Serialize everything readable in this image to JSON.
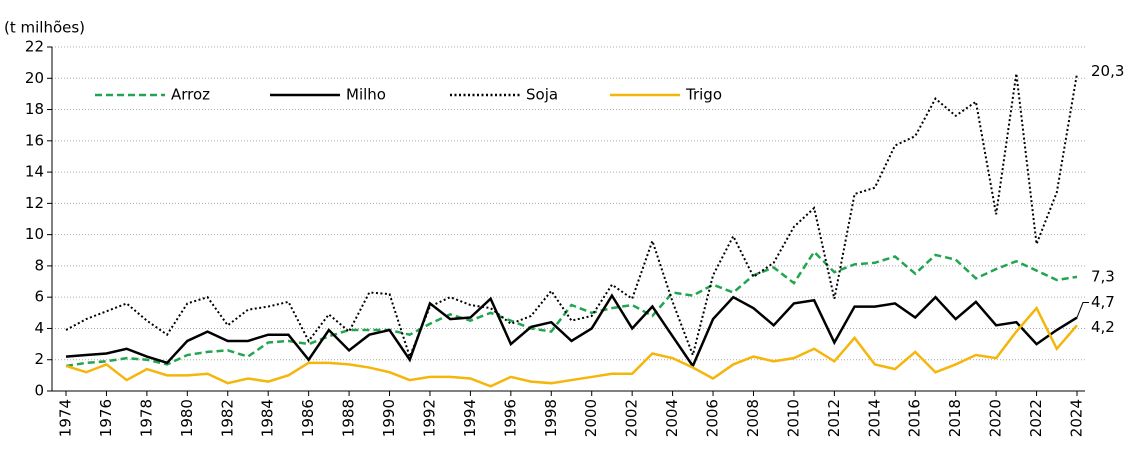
{
  "chart_data": {
    "type": "line",
    "y_label": "(t milhões)",
    "x": [
      1974,
      1975,
      1976,
      1977,
      1978,
      1979,
      1980,
      1981,
      1982,
      1983,
      1984,
      1985,
      1986,
      1987,
      1988,
      1989,
      1990,
      1991,
      1992,
      1993,
      1994,
      1995,
      1996,
      1997,
      1998,
      1999,
      2000,
      2001,
      2002,
      2003,
      2004,
      2005,
      2006,
      2007,
      2008,
      2009,
      2010,
      2011,
      2012,
      2013,
      2014,
      2015,
      2016,
      2017,
      2018,
      2019,
      2020,
      2021,
      2022,
      2023,
      2024
    ],
    "xlim": [
      1974,
      2024
    ],
    "xticks": [
      1974,
      1976,
      1978,
      1980,
      1982,
      1984,
      1986,
      1988,
      1990,
      1992,
      1994,
      1996,
      1998,
      2000,
      2002,
      2004,
      2006,
      2008,
      2010,
      2012,
      2014,
      2016,
      2018,
      2020,
      2022,
      2024
    ],
    "ylim": [
      0,
      22
    ],
    "yticks": [
      0,
      2,
      4,
      6,
      8,
      10,
      12,
      14,
      16,
      18,
      20,
      22
    ],
    "grid": true,
    "legend": "top-left",
    "series": [
      {
        "name": "Arroz",
        "color": "#22a550",
        "dash": "dashed",
        "values": [
          1.6,
          1.8,
          1.9,
          2.1,
          2.0,
          1.7,
          2.3,
          2.5,
          2.6,
          2.2,
          3.1,
          3.2,
          3.0,
          3.5,
          3.9,
          3.9,
          3.9,
          3.6,
          4.3,
          4.9,
          4.5,
          5.0,
          4.5,
          4.0,
          3.8,
          5.5,
          5.0,
          5.3,
          5.5,
          4.8,
          6.3,
          6.1,
          6.8,
          6.3,
          7.4,
          7.9,
          6.9,
          8.9,
          7.6,
          8.1,
          8.2,
          8.6,
          7.5,
          8.7,
          8.4,
          7.2,
          7.8,
          8.3,
          7.7,
          7.1,
          7.3
        ],
        "value_labels": [
          null,
          null,
          null,
          null,
          null,
          null,
          null,
          null,
          null,
          null,
          null,
          null,
          null,
          null,
          null,
          null,
          null,
          null,
          null,
          null,
          null,
          null,
          null,
          null,
          null,
          null,
          null,
          null,
          null,
          null,
          null,
          null,
          null,
          null,
          null,
          null,
          null,
          null,
          null,
          null,
          null,
          null,
          null,
          null,
          null,
          null,
          null,
          null,
          null,
          null,
          "7,3"
        ]
      },
      {
        "name": "Milho",
        "color": "#000000",
        "dash": "solid",
        "values": [
          2.2,
          2.3,
          2.4,
          2.7,
          2.2,
          1.8,
          3.2,
          3.8,
          3.2,
          3.2,
          3.6,
          3.6,
          2.0,
          3.9,
          2.6,
          3.6,
          3.9,
          2.0,
          5.6,
          4.6,
          4.7,
          5.9,
          3.0,
          4.1,
          4.4,
          3.2,
          4.0,
          6.1,
          4.0,
          5.4,
          3.5,
          1.6,
          4.6,
          6.0,
          5.3,
          4.2,
          5.6,
          5.8,
          3.1,
          5.4,
          5.4,
          5.6,
          4.7,
          6.0,
          4.6,
          5.7,
          4.2,
          4.4,
          3.0,
          3.9,
          4.7
        ],
        "value_labels": [
          null,
          null,
          null,
          null,
          null,
          null,
          null,
          null,
          null,
          null,
          null,
          null,
          null,
          null,
          null,
          null,
          null,
          null,
          null,
          null,
          null,
          null,
          null,
          null,
          null,
          null,
          null,
          null,
          null,
          null,
          null,
          null,
          null,
          null,
          null,
          null,
          null,
          null,
          null,
          null,
          null,
          null,
          null,
          null,
          null,
          null,
          null,
          null,
          null,
          null,
          "4,7"
        ]
      },
      {
        "name": "Soja",
        "color": "#000000",
        "dash": "dotted",
        "values": [
          3.9,
          4.6,
          5.1,
          5.6,
          4.5,
          3.6,
          5.6,
          6.0,
          4.2,
          5.2,
          5.4,
          5.7,
          3.2,
          4.9,
          3.8,
          6.3,
          6.2,
          2.2,
          5.4,
          6.0,
          5.5,
          5.3,
          4.3,
          4.8,
          6.4,
          4.5,
          4.8,
          6.8,
          5.9,
          9.6,
          5.7,
          2.3,
          7.4,
          9.9,
          7.3,
          8.2,
          10.5,
          11.7,
          5.9,
          12.6,
          13.0,
          15.7,
          16.3,
          18.7,
          17.6,
          18.5,
          11.3,
          20.3,
          9.4,
          12.7,
          20.3
        ],
        "value_labels": [
          null,
          null,
          null,
          null,
          null,
          null,
          null,
          null,
          null,
          null,
          null,
          null,
          null,
          null,
          null,
          null,
          null,
          null,
          null,
          null,
          null,
          null,
          null,
          null,
          null,
          null,
          null,
          null,
          null,
          null,
          null,
          null,
          null,
          null,
          null,
          null,
          null,
          null,
          null,
          null,
          null,
          null,
          null,
          null,
          null,
          null,
          null,
          null,
          null,
          null,
          "20,3"
        ]
      },
      {
        "name": "Trigo",
        "color": "#f5b50a",
        "dash": "solid",
        "values": [
          1.6,
          1.2,
          1.7,
          0.7,
          1.4,
          1.0,
          1.0,
          1.1,
          0.5,
          0.8,
          0.6,
          1.0,
          1.8,
          1.8,
          1.7,
          1.5,
          1.2,
          0.7,
          0.9,
          0.9,
          0.8,
          0.3,
          0.9,
          0.6,
          0.5,
          0.7,
          0.9,
          1.1,
          1.1,
          2.4,
          2.1,
          1.5,
          0.8,
          1.7,
          2.2,
          1.9,
          2.1,
          2.7,
          1.9,
          3.4,
          1.7,
          1.4,
          2.5,
          1.2,
          1.7,
          2.3,
          2.1,
          3.8,
          5.3,
          2.7,
          4.2
        ],
        "value_labels": [
          null,
          null,
          null,
          null,
          null,
          null,
          null,
          null,
          null,
          null,
          null,
          null,
          null,
          null,
          null,
          null,
          null,
          null,
          null,
          null,
          null,
          null,
          null,
          null,
          null,
          null,
          null,
          null,
          null,
          null,
          null,
          null,
          null,
          null,
          null,
          null,
          null,
          null,
          null,
          null,
          null,
          null,
          null,
          null,
          null,
          null,
          null,
          null,
          null,
          null,
          "4,2"
        ]
      }
    ]
  }
}
